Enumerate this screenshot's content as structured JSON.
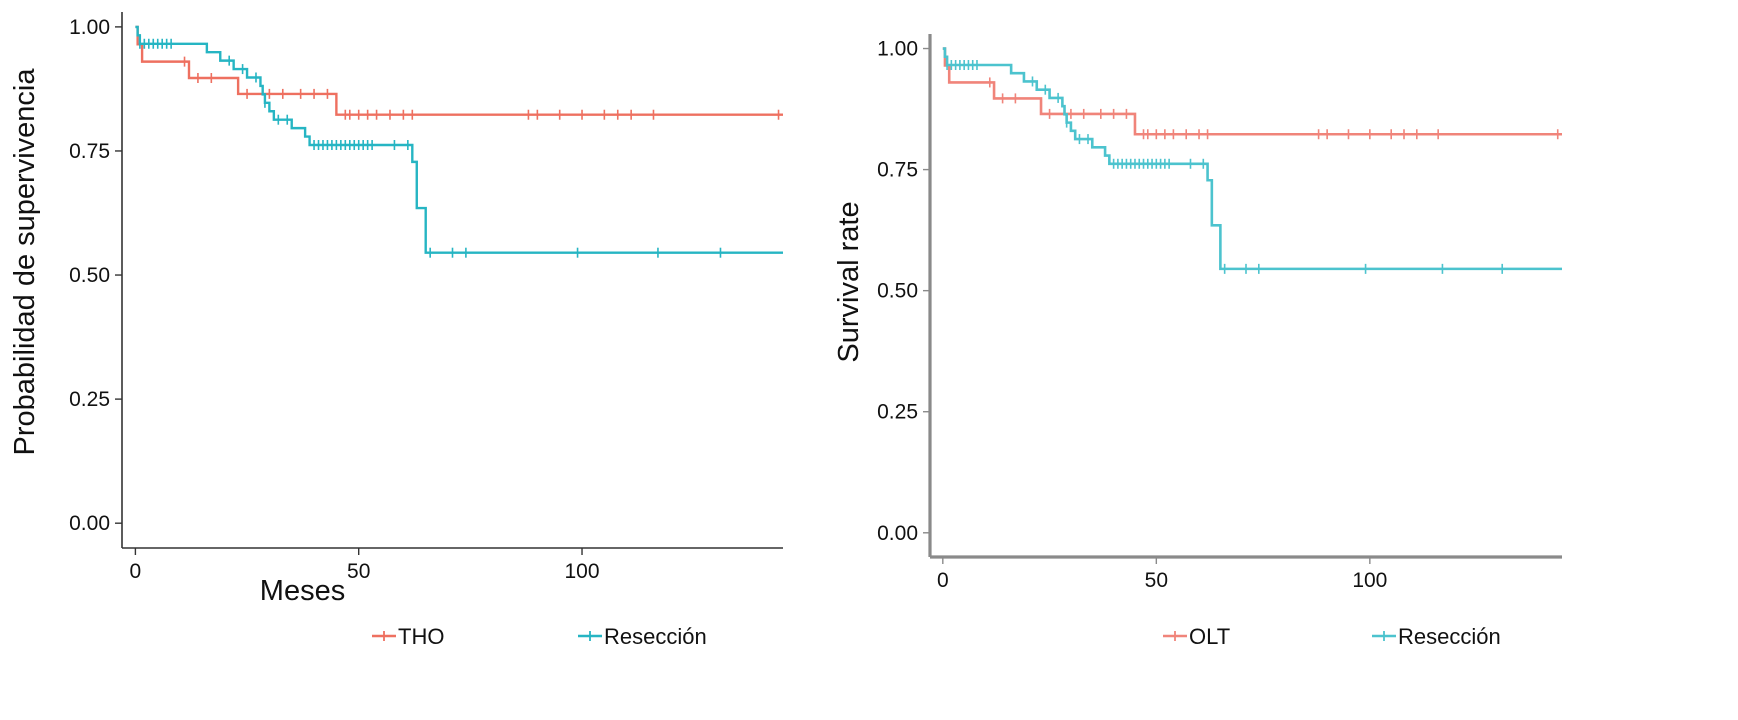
{
  "chart_data": [
    {
      "type": "line",
      "subtype": "kaplan-meier survival curve",
      "title": "",
      "xlabel": "Meses",
      "ylabel": "Probabilidad de supervivencia",
      "xlim": [
        -3,
        145
      ],
      "ylim": [
        -0.05,
        1.03
      ],
      "xticks": [
        0,
        50,
        100
      ],
      "xtick_labels": [
        "0",
        "50",
        "100"
      ],
      "yticks": [
        0,
        0.25,
        0.5,
        0.75,
        1
      ],
      "ytick_labels": [
        "0.00",
        "0.25",
        "0.50",
        "0.75",
        "1.00"
      ],
      "grid": false,
      "legend_position": "bottom",
      "series": [
        {
          "name": "THO",
          "color": "#EE7060",
          "steps": [
            [
              0,
              1.0
            ],
            [
              0.5,
              0.965
            ],
            [
              1.5,
              0.93
            ],
            [
              12,
              0.897
            ],
            [
              23,
              0.865
            ],
            [
              45,
              0.823
            ],
            [
              145,
              0.823
            ]
          ],
          "censor_times": [
            11,
            14,
            17,
            25,
            30,
            33,
            37,
            40,
            43,
            47,
            48,
            50,
            52,
            54,
            57,
            60,
            62,
            88,
            90,
            95,
            100,
            105,
            108,
            111,
            116,
            144
          ]
        },
        {
          "name": "Resección",
          "color": "#26B5C3",
          "steps": [
            [
              0,
              1.0
            ],
            [
              0.5,
              0.983
            ],
            [
              1,
              0.966
            ],
            [
              16,
              0.949
            ],
            [
              19,
              0.932
            ],
            [
              22,
              0.915
            ],
            [
              25,
              0.898
            ],
            [
              28,
              0.881
            ],
            [
              28.5,
              0.864
            ],
            [
              29,
              0.847
            ],
            [
              30,
              0.83
            ],
            [
              31,
              0.813
            ],
            [
              35,
              0.796
            ],
            [
              38,
              0.779
            ],
            [
              39,
              0.762
            ],
            [
              62,
              0.728
            ],
            [
              63,
              0.635
            ],
            [
              65,
              0.545
            ],
            [
              145,
              0.545
            ]
          ],
          "censor_times": [
            1,
            2,
            3,
            4,
            5,
            6,
            7,
            8,
            21,
            24,
            27,
            29,
            32,
            34,
            40,
            41,
            42,
            43,
            44,
            45,
            46,
            47,
            48,
            49,
            50,
            51,
            52,
            53,
            58,
            61,
            66,
            71,
            74,
            99,
            117,
            131
          ]
        }
      ]
    },
    {
      "type": "line",
      "subtype": "kaplan-meier survival curve",
      "title": "",
      "xlabel": "",
      "ylabel": "Survival rate",
      "xlim": [
        -3,
        145
      ],
      "ylim": [
        -0.05,
        1.03
      ],
      "xticks": [
        0,
        50,
        100
      ],
      "xtick_labels": [
        "0",
        "50",
        "100"
      ],
      "yticks": [
        0,
        0.25,
        0.5,
        0.75,
        1
      ],
      "ytick_labels": [
        "0.00",
        "0.25",
        "0.50",
        "0.75",
        "1.00"
      ],
      "grid": false,
      "legend_position": "bottom",
      "series": [
        {
          "name": "OLT",
          "color": "#F0847A",
          "steps": [
            [
              0,
              1.0
            ],
            [
              0.5,
              0.965
            ],
            [
              1.5,
              0.93
            ],
            [
              12,
              0.897
            ],
            [
              23,
              0.865
            ],
            [
              45,
              0.823
            ],
            [
              145,
              0.823
            ]
          ],
          "censor_times": [
            11,
            14,
            17,
            25,
            30,
            33,
            37,
            40,
            43,
            47,
            48,
            50,
            52,
            54,
            57,
            60,
            62,
            88,
            90,
            95,
            100,
            105,
            108,
            111,
            116,
            144
          ]
        },
        {
          "name": "Resección",
          "color": "#4CC3CE",
          "steps": [
            [
              0,
              1.0
            ],
            [
              0.5,
              0.983
            ],
            [
              1,
              0.966
            ],
            [
              16,
              0.949
            ],
            [
              19,
              0.932
            ],
            [
              22,
              0.915
            ],
            [
              25,
              0.898
            ],
            [
              28,
              0.881
            ],
            [
              28.5,
              0.864
            ],
            [
              29,
              0.847
            ],
            [
              30,
              0.83
            ],
            [
              31,
              0.813
            ],
            [
              35,
              0.796
            ],
            [
              38,
              0.779
            ],
            [
              39,
              0.762
            ],
            [
              62,
              0.728
            ],
            [
              63,
              0.635
            ],
            [
              65,
              0.545
            ],
            [
              145,
              0.545
            ]
          ],
          "censor_times": [
            1,
            2,
            3,
            4,
            5,
            6,
            7,
            8,
            21,
            24,
            27,
            29,
            32,
            34,
            40,
            41,
            42,
            43,
            44,
            45,
            46,
            47,
            48,
            49,
            50,
            51,
            52,
            53,
            58,
            61,
            66,
            71,
            74,
            99,
            117,
            131
          ]
        }
      ]
    }
  ]
}
